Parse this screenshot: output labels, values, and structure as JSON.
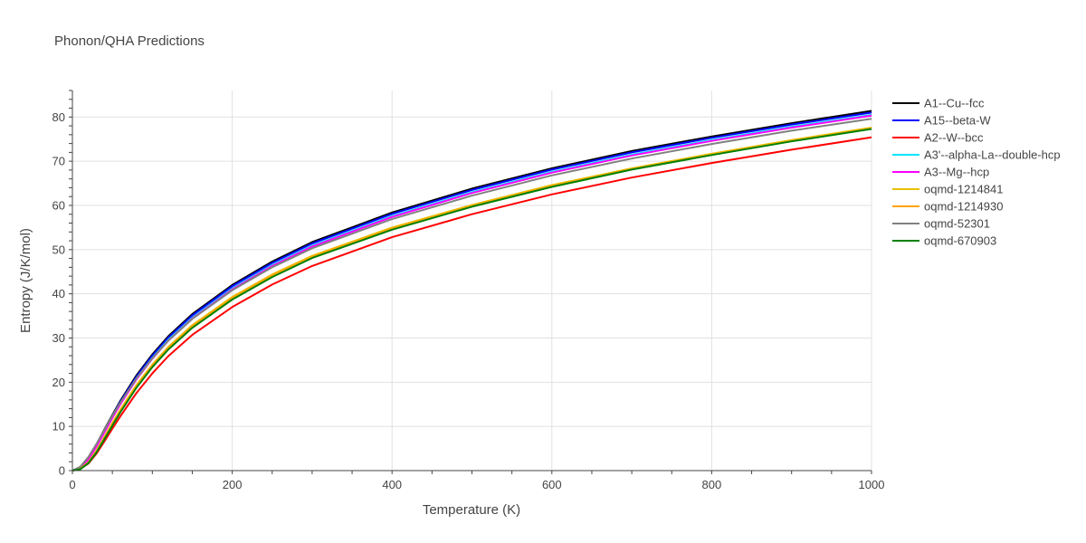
{
  "chart_data": {
    "type": "line",
    "title": "Phonon/QHA Predictions",
    "xlabel": "Temperature (K)",
    "ylabel": "Entropy (J/K/mol)",
    "xlim": [
      0,
      1000
    ],
    "ylim": [
      0,
      86
    ],
    "xticks": [
      0,
      200,
      400,
      600,
      800,
      1000
    ],
    "yticks": [
      0,
      10,
      20,
      30,
      40,
      50,
      60,
      70,
      80
    ],
    "grid": true,
    "legend": "right",
    "x": [
      0,
      10,
      20,
      30,
      40,
      50,
      60,
      80,
      100,
      120,
      150,
      200,
      250,
      300,
      400,
      500,
      600,
      700,
      800,
      900,
      1000
    ],
    "series": [
      {
        "name": "A1--Cu--fcc",
        "color": "#000000",
        "values": [
          0,
          0.8,
          2.9,
          5.9,
          9.3,
          12.6,
          15.8,
          21.5,
          26.3,
          30.4,
          35.4,
          42.0,
          47.3,
          51.7,
          58.4,
          63.8,
          68.4,
          72.3,
          75.6,
          78.6,
          81.4
        ]
      },
      {
        "name": "A15--beta-W",
        "color": "#0000ff",
        "values": [
          0,
          0.7,
          2.8,
          5.8,
          9.1,
          12.4,
          15.6,
          21.2,
          26.0,
          30.1,
          35.1,
          41.7,
          47.0,
          51.4,
          58.1,
          63.5,
          68.1,
          72.0,
          75.3,
          78.3,
          81.0
        ]
      },
      {
        "name": "A2--W--bcc",
        "color": "#ff0000",
        "values": [
          0,
          0.4,
          1.6,
          3.8,
          6.6,
          9.5,
          12.3,
          17.5,
          22.0,
          25.9,
          30.7,
          37.0,
          42.1,
          46.3,
          52.8,
          58.0,
          62.5,
          66.3,
          69.6,
          72.6,
          75.4
        ]
      },
      {
        "name": "A3'--alpha-La--double-hcp",
        "color": "#00e5ff",
        "values": [
          0,
          0.6,
          2.6,
          5.5,
          8.8,
          12.0,
          15.2,
          20.8,
          25.5,
          29.6,
          34.6,
          41.2,
          46.5,
          50.9,
          57.6,
          63.0,
          67.6,
          71.5,
          74.8,
          77.8,
          80.5
        ]
      },
      {
        "name": "A3--Mg--hcp",
        "color": "#ff00ff",
        "values": [
          0,
          0.6,
          2.5,
          5.4,
          8.6,
          11.9,
          15.0,
          20.6,
          25.3,
          29.4,
          34.4,
          41.0,
          46.3,
          50.7,
          57.4,
          62.8,
          67.4,
          71.3,
          74.6,
          77.6,
          80.3
        ]
      },
      {
        "name": "oqmd-1214841",
        "color": "#e8c000",
        "values": [
          0,
          0.4,
          1.9,
          4.5,
          7.6,
          10.8,
          13.8,
          19.3,
          24.0,
          28.0,
          32.9,
          39.3,
          44.4,
          48.6,
          55.0,
          60.1,
          64.6,
          68.4,
          71.7,
          74.8,
          77.6
        ]
      },
      {
        "name": "oqmd-1214930",
        "color": "#ffa500",
        "values": [
          0,
          0.4,
          1.8,
          4.3,
          7.4,
          10.6,
          13.6,
          19.1,
          23.8,
          27.8,
          32.7,
          39.1,
          44.2,
          48.4,
          54.8,
          59.9,
          64.4,
          68.2,
          71.5,
          74.6,
          77.4
        ]
      },
      {
        "name": "oqmd-52301",
        "color": "#808080",
        "values": [
          0,
          0.9,
          3.1,
          6.0,
          9.2,
          12.4,
          15.4,
          20.8,
          25.4,
          29.4,
          34.3,
          40.8,
          46.0,
          50.3,
          56.9,
          62.2,
          66.8,
          70.6,
          73.9,
          76.9,
          79.6
        ]
      },
      {
        "name": "oqmd-670903",
        "color": "#008000",
        "values": [
          0,
          0.3,
          1.7,
          4.1,
          7.1,
          10.2,
          13.2,
          18.7,
          23.4,
          27.4,
          32.3,
          38.7,
          43.8,
          48.1,
          54.5,
          59.7,
          64.2,
          68.1,
          71.4,
          74.5,
          77.3
        ]
      }
    ]
  }
}
